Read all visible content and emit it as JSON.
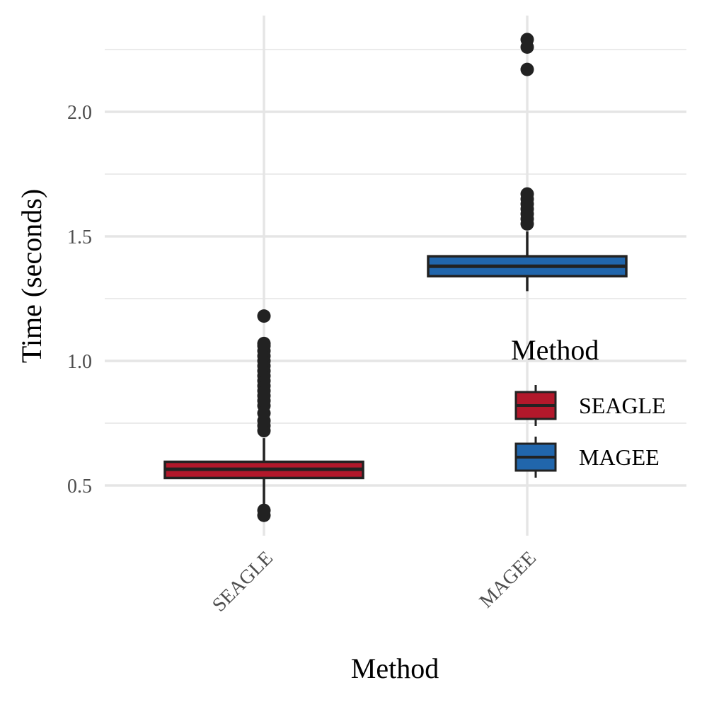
{
  "chart_data": {
    "type": "box",
    "title": "",
    "xlabel": "Method",
    "ylabel": "Time (seconds)",
    "ylim": [
      0.3,
      2.39
    ],
    "y_ticks": [
      0.5,
      1.0,
      1.5,
      2.0
    ],
    "y_tick_labels": [
      "0.5",
      "1.0",
      "1.5",
      "2.0"
    ],
    "y_minor_gridlines": [
      0.75,
      1.25,
      1.75,
      2.25
    ],
    "grid": true,
    "categories": [
      "SEAGLE",
      "MAGEE"
    ],
    "series": [
      {
        "name": "SEAGLE",
        "color": "#b2182b",
        "q1": 0.53,
        "median": 0.565,
        "q3": 0.595,
        "whisker_low": 0.42,
        "whisker_high": 0.69,
        "outliers": [
          0.38,
          0.4,
          0.72,
          0.74,
          0.76,
          0.79,
          0.82,
          0.84,
          0.86,
          0.88,
          0.9,
          0.92,
          0.94,
          0.96,
          0.98,
          1.0,
          1.02,
          1.04,
          1.06,
          1.07,
          1.18
        ]
      },
      {
        "name": "MAGEE",
        "color": "#2166ac",
        "q1": 1.34,
        "median": 1.38,
        "q3": 1.42,
        "whisker_low": 1.28,
        "whisker_high": 1.52,
        "outliers": [
          1.55,
          1.57,
          1.59,
          1.61,
          1.63,
          1.65,
          1.67,
          2.17,
          2.26,
          2.29
        ]
      }
    ],
    "legend": {
      "title": "Method",
      "placement": "right",
      "entries": [
        "SEAGLE",
        "MAGEE"
      ]
    }
  }
}
